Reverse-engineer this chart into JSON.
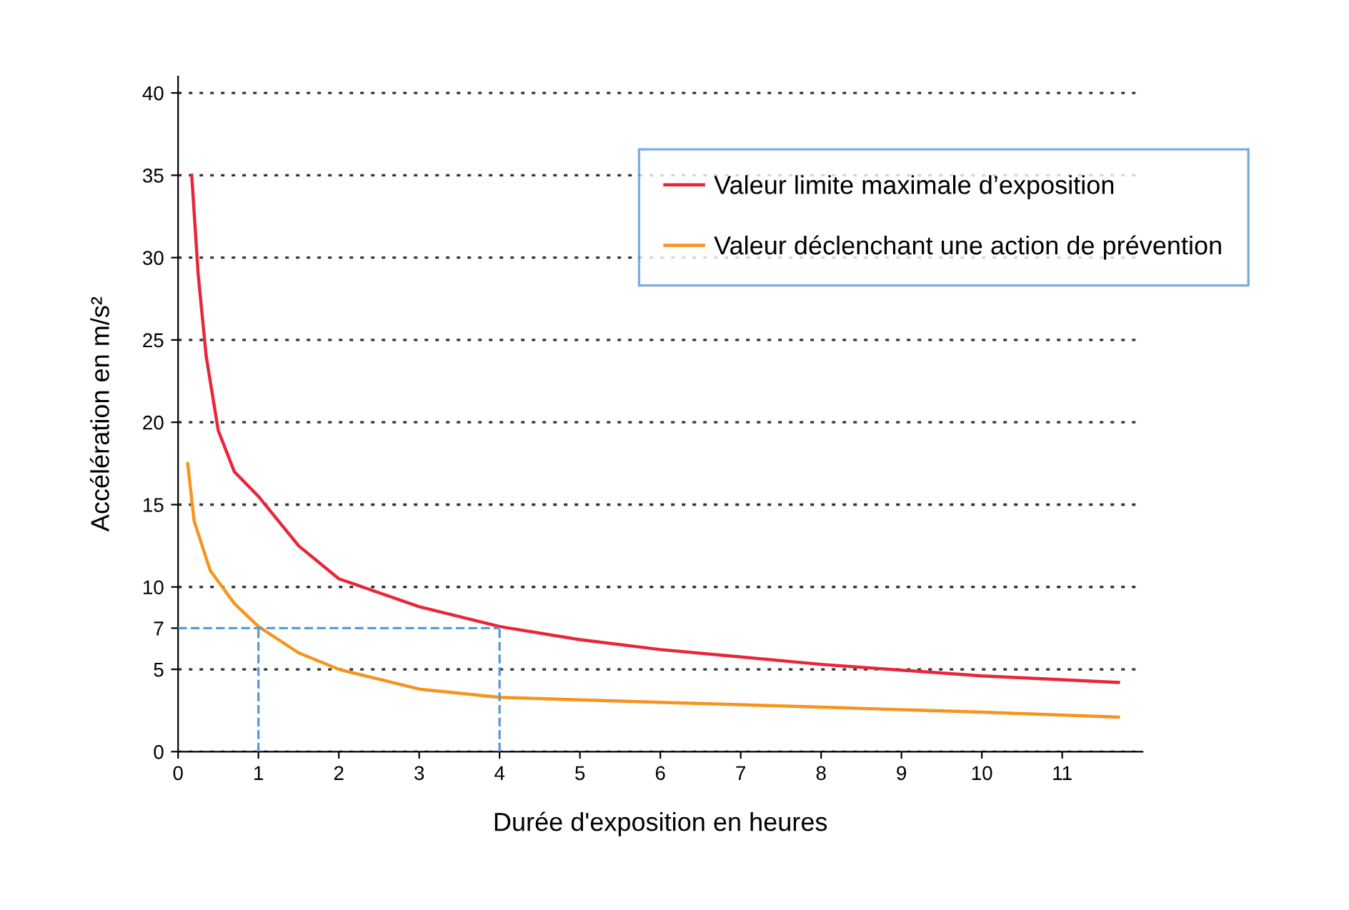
{
  "chart_data": {
    "type": "line",
    "xlabel": "Durée d'exposition en heures",
    "ylabel": "Accélération en m/s²",
    "xlim": [
      0,
      12
    ],
    "xticks": [
      0,
      1,
      2,
      3,
      4,
      5,
      6,
      7,
      8,
      9,
      10,
      11
    ],
    "ylim": [
      0,
      41
    ],
    "yticks": [
      0,
      5,
      {
        "value": 7.5,
        "label": "7"
      },
      10,
      15,
      20,
      25,
      30,
      35,
      40
    ],
    "grid": "y",
    "legend": "top right",
    "marker": "none",
    "series": [
      {
        "name": "Valeur limite maximale d’exposition",
        "color": "#e8263a",
        "line_style": "solid",
        "x": [
          0.17,
          0.25,
          0.35,
          0.5,
          0.7,
          1,
          1.5,
          2,
          3,
          4,
          5,
          6,
          8,
          10,
          11.7
        ],
        "values": [
          35,
          29,
          24,
          19.5,
          17,
          15.5,
          12.5,
          10.5,
          8.8,
          7.6,
          6.8,
          6.2,
          5.3,
          4.6,
          4.2
        ]
      },
      {
        "name": "Valeur déclenchant une action de prévention",
        "color": "#f7941d",
        "line_style": "solid",
        "x": [
          0.12,
          0.2,
          0.4,
          0.7,
          1,
          1.5,
          2,
          3,
          4,
          6,
          8,
          10,
          11.7
        ],
        "values": [
          17.5,
          14,
          11,
          9,
          7.6,
          6,
          5,
          3.8,
          3.3,
          3,
          2.7,
          2.4,
          2.1
        ]
      },
      {
        "color": "#5b9bd5",
        "line_style": "dashed",
        "x": [
          0,
          4
        ],
        "values": [
          7.5,
          7.5
        ]
      },
      {
        "color": "#5b9bd5",
        "line_style": "dashed",
        "x": [
          1,
          1
        ],
        "values": [
          0,
          7.5
        ]
      },
      {
        "color": "#5b9bd5",
        "line_style": "dashed",
        "x": [
          4,
          4
        ],
        "values": [
          0,
          7.5
        ]
      }
    ]
  }
}
